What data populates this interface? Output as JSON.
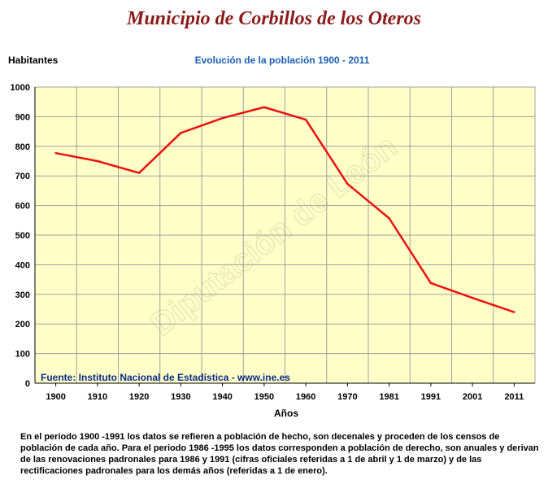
{
  "page": {
    "title": "Municipio de Corbillos de los Oteros",
    "source": "Fuente: Instituto Nacional de Estadística - www.ine.es",
    "note": "En el periodo 1900 -1991 los datos se refieren a población de hecho, son decenales y proceden de los censos de población de cada año. Para el periodo 1986 -1995 los datos corresponden a población de derecho, son anuales y derivan de las renovaciones padronales para 1986 y 1991 (cifras oficiales referidas a 1 de abril y 1 de marzo) y de las rectificaciones padronales para los demás años (referidas a 1 de enero).",
    "watermark": "Diputación de León"
  },
  "colors": {
    "plot_bg": "#ffffc8",
    "line": "#ee1111",
    "grid": "#a0a0a0",
    "title": "#8b1a1a",
    "subtitle": "#1a5fb4",
    "source": "#0a2a8a"
  },
  "chart_data": {
    "type": "line",
    "title": "Evolución de la población 1900 - 2011",
    "xlabel": "Años",
    "ylabel": "Habitantes",
    "categories": [
      "1900",
      "1910",
      "1920",
      "1930",
      "1940",
      "1950",
      "1960",
      "1970",
      "1981",
      "1991",
      "2001",
      "2011"
    ],
    "series": [
      {
        "values": [
          777,
          750,
          710,
          845,
          895,
          932,
          890,
          673,
          557,
          338,
          288,
          240
        ]
      }
    ],
    "ylim": [
      0,
      1000
    ],
    "yticks": [
      0,
      100,
      200,
      300,
      400,
      500,
      600,
      700,
      800,
      900,
      1000
    ],
    "grid": true,
    "legend": "none"
  }
}
